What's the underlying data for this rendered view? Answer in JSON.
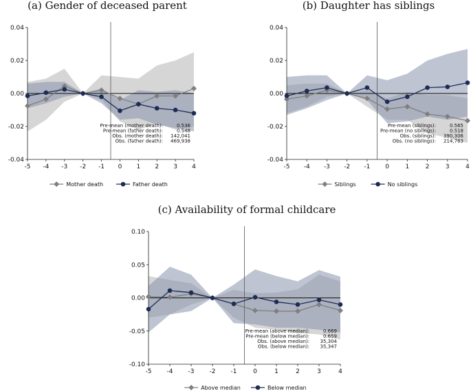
{
  "colors": {
    "series_a": "#7f7f7f",
    "series_b": "#1c2c54",
    "band_a": "#c8c8c8",
    "band_b": "#8a93ad"
  },
  "chart_data": [
    {
      "type": "line",
      "title": "(a)  Gender of deceased parent",
      "x": [
        -5,
        -4,
        -3,
        -2,
        -1,
        0,
        1,
        2,
        3,
        4
      ],
      "ylim": [
        -0.04,
        0.04
      ],
      "yticks": [
        "0.04",
        "0.02",
        "0.00",
        "-0.02",
        "-0.04"
      ],
      "ytick_values": [
        0.04,
        0.02,
        0,
        -0.02,
        -0.04
      ],
      "event_line_x": -0.5,
      "series": [
        {
          "name": "Mother death",
          "marker": "diamond",
          "values": [
            -0.0075,
            -0.0035,
            0.0045,
            0.0,
            0.002,
            -0.003,
            -0.0065,
            -0.0015,
            -0.0015,
            0.003
          ],
          "ci_low": [
            -0.023,
            -0.016,
            -0.005,
            0.0,
            -0.004,
            -0.017,
            -0.022,
            -0.018,
            -0.022,
            -0.02
          ],
          "ci_high": [
            0.007,
            0.009,
            0.015,
            0.0,
            0.011,
            0.01,
            0.009,
            0.017,
            0.02,
            0.025
          ]
        },
        {
          "name": "Father death",
          "marker": "circle",
          "values": [
            -0.0015,
            0.0005,
            0.0025,
            0.0,
            -0.002,
            -0.0105,
            -0.0065,
            -0.009,
            -0.01,
            -0.012
          ],
          "ci_low": [
            -0.009,
            -0.006,
            -0.002,
            0.0,
            -0.006,
            -0.016,
            -0.015,
            -0.019,
            -0.021,
            -0.023
          ],
          "ci_high": [
            0.006,
            0.007,
            0.007,
            0.0,
            0.003,
            -0.004,
            0.002,
            0.001,
            0.002,
            0.0
          ]
        }
      ],
      "stats": [
        {
          "label": "Pre-mean (mother death):",
          "value": "0.536"
        },
        {
          "label": "Pre-mean (father death):",
          "value": "0.548"
        },
        {
          "label": "Obs. (mother death):",
          "value": "142,041"
        },
        {
          "label": "Obs. (father death):",
          "value": "469,938"
        }
      ]
    },
    {
      "type": "line",
      "title": "(b)  Daughter has siblings",
      "x": [
        -5,
        -4,
        -3,
        -2,
        -1,
        0,
        1,
        2,
        3,
        4
      ],
      "ylim": [
        -0.04,
        0.04
      ],
      "yticks": [
        "0.04",
        "0.02",
        "0.00",
        "-0.02",
        "-0.04"
      ],
      "ytick_values": [
        0.04,
        0.02,
        0,
        -0.02,
        -0.04
      ],
      "event_line_x": -0.5,
      "series": [
        {
          "name": "Siblings",
          "marker": "diamond",
          "values": [
            -0.0035,
            -0.0015,
            0.002,
            0.0,
            -0.003,
            -0.0095,
            -0.008,
            -0.0125,
            -0.014,
            -0.0165
          ],
          "ci_low": [
            -0.012,
            -0.008,
            -0.002,
            0.0,
            -0.008,
            -0.016,
            -0.016,
            -0.024,
            -0.027,
            -0.03
          ],
          "ci_high": [
            0.005,
            0.006,
            0.006,
            0.0,
            0.002,
            -0.003,
            0.001,
            -0.001,
            -0.001,
            -0.003
          ]
        },
        {
          "name": "No siblings",
          "marker": "circle",
          "values": [
            -0.0015,
            0.0015,
            0.0035,
            0.0,
            0.0035,
            -0.005,
            -0.002,
            0.0035,
            0.004,
            0.0065
          ],
          "ci_low": [
            -0.013,
            -0.009,
            -0.004,
            0.0,
            -0.004,
            -0.018,
            -0.017,
            -0.014,
            -0.016,
            -0.014
          ],
          "ci_high": [
            0.01,
            0.011,
            0.011,
            0.0,
            0.011,
            0.008,
            0.012,
            0.02,
            0.024,
            0.027
          ]
        }
      ],
      "stats": [
        {
          "label": "Pre-mean (siblings):",
          "value": "0.565"
        },
        {
          "label": "Pre-mean (no siblings):",
          "value": "0.518"
        },
        {
          "label": "Obs. (siblings):",
          "value": "390,306"
        },
        {
          "label": "Obs. (no siblings):",
          "value": "214,783"
        }
      ]
    },
    {
      "type": "line",
      "title": "(c)  Availability of formal childcare",
      "x": [
        -5,
        -4,
        -3,
        -2,
        -1,
        0,
        1,
        2,
        3,
        4
      ],
      "ylim": [
        -0.1,
        0.1
      ],
      "yticks": [
        "0.10",
        "0.05",
        "0.00",
        "-0.05",
        "-0.10"
      ],
      "ytick_values": [
        0.1,
        0.05,
        0,
        -0.05,
        -0.1
      ],
      "event_line_x": -0.5,
      "series": [
        {
          "name": "Above median",
          "marker": "diamond",
          "values": [
            0.002,
            0.001,
            0.006,
            0.0,
            -0.009,
            -0.019,
            -0.02,
            -0.02,
            -0.01,
            -0.019
          ],
          "ci_low": [
            -0.03,
            -0.025,
            -0.01,
            0.0,
            -0.03,
            -0.045,
            -0.048,
            -0.053,
            -0.055,
            -0.063
          ],
          "ci_high": [
            0.033,
            0.027,
            0.022,
            0.0,
            0.012,
            0.007,
            0.008,
            0.013,
            0.035,
            0.025
          ]
        },
        {
          "name": "Below median",
          "marker": "circle",
          "values": [
            -0.017,
            0.011,
            0.008,
            0.0,
            -0.009,
            0.001,
            -0.006,
            -0.01,
            -0.003,
            -0.01
          ],
          "ci_low": [
            -0.052,
            -0.025,
            -0.02,
            0.0,
            -0.038,
            -0.04,
            -0.045,
            -0.045,
            -0.048,
            -0.052
          ],
          "ci_high": [
            0.018,
            0.047,
            0.035,
            0.0,
            0.02,
            0.043,
            0.033,
            0.025,
            0.042,
            0.032
          ]
        }
      ],
      "stats": [
        {
          "label": "Pre-mean (above median):",
          "value": "0.669"
        },
        {
          "label": "Pre-mean (below median):",
          "value": "0.659"
        },
        {
          "label": "Obs. (above median):",
          "value": "35,304"
        },
        {
          "label": "Obs. (below median):",
          "value": "35,347"
        }
      ]
    }
  ]
}
